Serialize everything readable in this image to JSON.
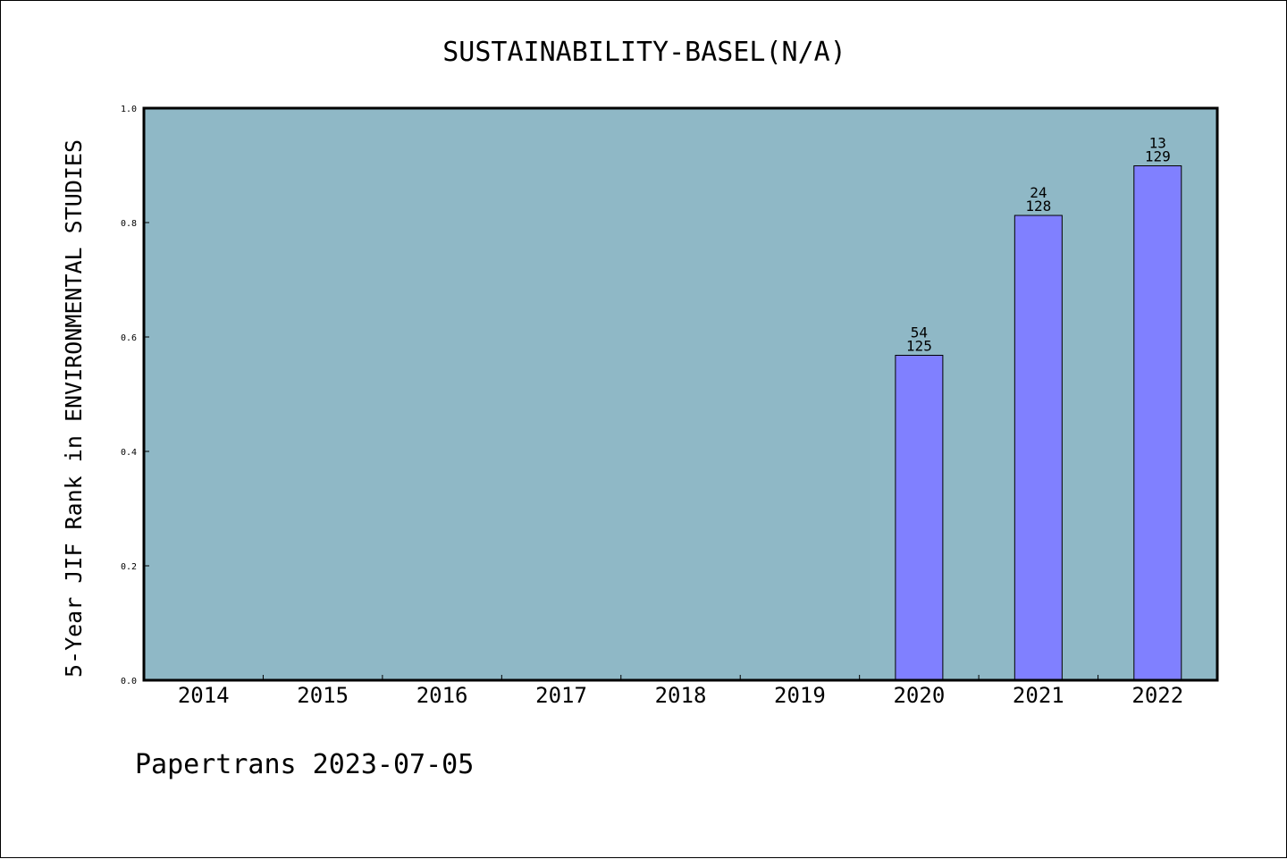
{
  "colors": {
    "plot_background": "#8fb8c6",
    "bar_fill": "#8080ff",
    "bar_stroke": "#000000"
  },
  "footer": "Papertrans 2023-07-05",
  "chart_data": {
    "type": "bar",
    "title": "SUSTAINABILITY-BASEL(N/A)",
    "xlabel": "",
    "ylabel": "5-Year JIF Rank in ENVIRONMENTAL STUDIES",
    "ylim": [
      0,
      1.0
    ],
    "yticks": [
      "0.0",
      "0.2",
      "0.4",
      "0.6",
      "0.8",
      "1.0"
    ],
    "grid": false,
    "categories": [
      "2014",
      "2015",
      "2016",
      "2017",
      "2018",
      "2019",
      "2020",
      "2021",
      "2022"
    ],
    "values": [
      null,
      null,
      null,
      null,
      null,
      null,
      0.568,
      0.8125,
      0.8992
    ],
    "annotations": [
      null,
      null,
      null,
      null,
      null,
      null,
      {
        "rank": "54",
        "total": "125"
      },
      {
        "rank": "24",
        "total": "128"
      },
      {
        "rank": "13",
        "total": "129"
      }
    ]
  }
}
